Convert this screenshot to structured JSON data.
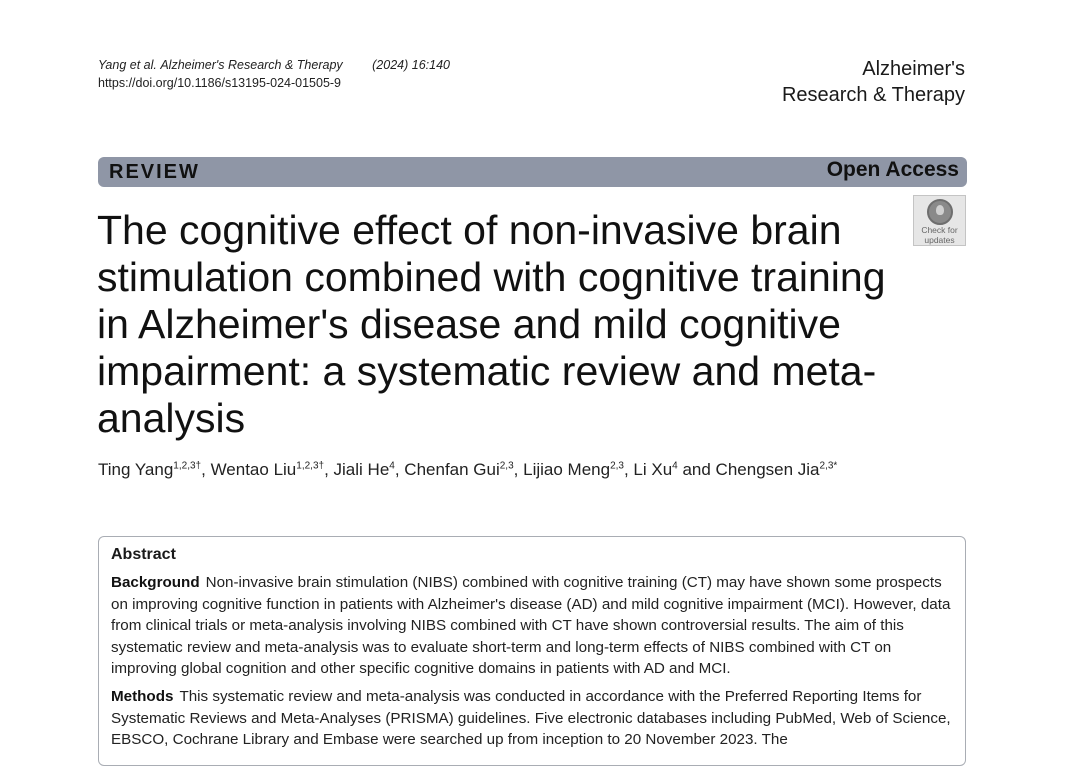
{
  "header": {
    "citation_authors": "Yang et al.",
    "citation_journal": "Alzheimer's Research & Therapy",
    "citation_volume": "(2024) 16:140",
    "doi": "https://doi.org/10.1186/s13195-024-01505-9",
    "journal_line1": "Alzheimer's",
    "journal_line2": "Research & Therapy"
  },
  "banner": {
    "article_type": "REVIEW",
    "access": "Open Access",
    "banner_color": "#8f96a6"
  },
  "check_updates": {
    "icon": "check-for-updates-icon",
    "line1": "Check for",
    "line2": "updates"
  },
  "title": "The cognitive effect of non-invasive brain stimulation combined with cognitive training in Alzheimer's disease and mild cognitive impairment: a systematic review and meta-analysis",
  "authors": [
    {
      "name": "Ting Yang",
      "aff": "1,2,3†",
      "sep": ", "
    },
    {
      "name": "Wentao Liu",
      "aff": "1,2,3†",
      "sep": ", "
    },
    {
      "name": "Jiali He",
      "aff": "4",
      "sep": ", "
    },
    {
      "name": "Chenfan Gui",
      "aff": "2,3",
      "sep": ", "
    },
    {
      "name": "Lijiao Meng",
      "aff": "2,3",
      "sep": ", "
    },
    {
      "name": "Li Xu",
      "aff": "4",
      "sep": " and "
    },
    {
      "name": "Chengsen Jia",
      "aff": "2,3*",
      "sep": ""
    }
  ],
  "abstract": {
    "heading": "Abstract",
    "sections": [
      {
        "label": "Background",
        "text": "Non-invasive brain stimulation (NIBS) combined with cognitive training (CT) may have shown some prospects on improving cognitive function in patients with Alzheimer's disease (AD) and mild cognitive impairment (MCI). However, data from clinical trials or meta-analysis involving NIBS combined with CT have shown controversial results. The aim of this systematic review and meta-analysis was to evaluate short-term and long-term effects of NIBS combined with CT on improving global cognition and other specific cognitive domains in patients with AD and MCI."
      },
      {
        "label": "Methods",
        "text": "This systematic review and meta-analysis was conducted in accordance with the Preferred Reporting Items for Systematic Reviews and Meta-Analyses (PRISMA) guidelines. Five electronic databases including PubMed, Web of Science, EBSCO, Cochrane Library and Embase were searched up from inception to 20 November 2023. The"
      }
    ]
  }
}
